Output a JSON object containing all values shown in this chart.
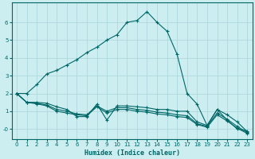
{
  "xlabel": "Humidex (Indice chaleur)",
  "bg_color": "#cceef0",
  "grid_color": "#aad4d8",
  "line_color": "#006666",
  "xlim": [
    -0.5,
    23.5
  ],
  "ylim": [
    -0.55,
    7.1
  ],
  "xticks": [
    0,
    1,
    2,
    3,
    4,
    5,
    6,
    7,
    8,
    9,
    10,
    11,
    12,
    13,
    14,
    15,
    16,
    17,
    18,
    19,
    20,
    21,
    22,
    23
  ],
  "yticks": [
    0,
    1,
    2,
    3,
    4,
    5,
    6
  ],
  "ytick_labels": [
    "-0",
    "1",
    "2",
    "3",
    "4",
    "5",
    "6"
  ],
  "line1_x": [
    0,
    1,
    2,
    3,
    4,
    5,
    6,
    7,
    8,
    9,
    10,
    11,
    12,
    13,
    14,
    15,
    16,
    17,
    18,
    19,
    20,
    21,
    22,
    23
  ],
  "line1_y": [
    2.0,
    2.0,
    2.5,
    3.1,
    3.3,
    3.6,
    3.9,
    4.3,
    4.6,
    5.0,
    5.3,
    6.0,
    6.1,
    6.6,
    6.0,
    5.5,
    4.2,
    2.0,
    1.4,
    0.2,
    1.1,
    0.5,
    0.0,
    -0.1
  ],
  "line2_x": [
    0,
    1,
    2,
    3,
    4,
    5,
    6,
    7,
    8,
    9,
    10,
    11,
    12,
    13,
    14,
    15,
    16,
    17,
    18,
    19,
    20,
    21,
    22,
    23
  ],
  "line2_y": [
    2.0,
    1.5,
    1.5,
    1.45,
    1.25,
    1.1,
    0.7,
    0.7,
    1.4,
    0.5,
    1.3,
    1.3,
    1.25,
    1.2,
    1.1,
    1.1,
    1.0,
    1.0,
    0.4,
    0.2,
    1.1,
    0.8,
    0.4,
    -0.15
  ],
  "line3_x": [
    0,
    1,
    2,
    3,
    4,
    5,
    6,
    7,
    8,
    9,
    10,
    11,
    12,
    13,
    14,
    15,
    16,
    17,
    18,
    19,
    20,
    21,
    22,
    23
  ],
  "line3_y": [
    2.0,
    1.5,
    1.45,
    1.35,
    1.1,
    1.0,
    0.85,
    0.8,
    1.3,
    1.0,
    1.2,
    1.2,
    1.1,
    1.05,
    0.95,
    0.9,
    0.8,
    0.75,
    0.3,
    0.15,
    0.9,
    0.55,
    0.15,
    -0.2
  ],
  "line4_x": [
    0,
    1,
    2,
    3,
    4,
    5,
    6,
    7,
    8,
    9,
    10,
    11,
    12,
    13,
    14,
    15,
    16,
    17,
    18,
    19,
    20,
    21,
    22,
    23
  ],
  "line4_y": [
    2.0,
    1.5,
    1.42,
    1.3,
    1.0,
    0.9,
    0.8,
    0.75,
    1.25,
    0.9,
    1.1,
    1.1,
    1.0,
    0.95,
    0.85,
    0.8,
    0.7,
    0.65,
    0.25,
    0.1,
    0.8,
    0.45,
    0.05,
    -0.25
  ]
}
